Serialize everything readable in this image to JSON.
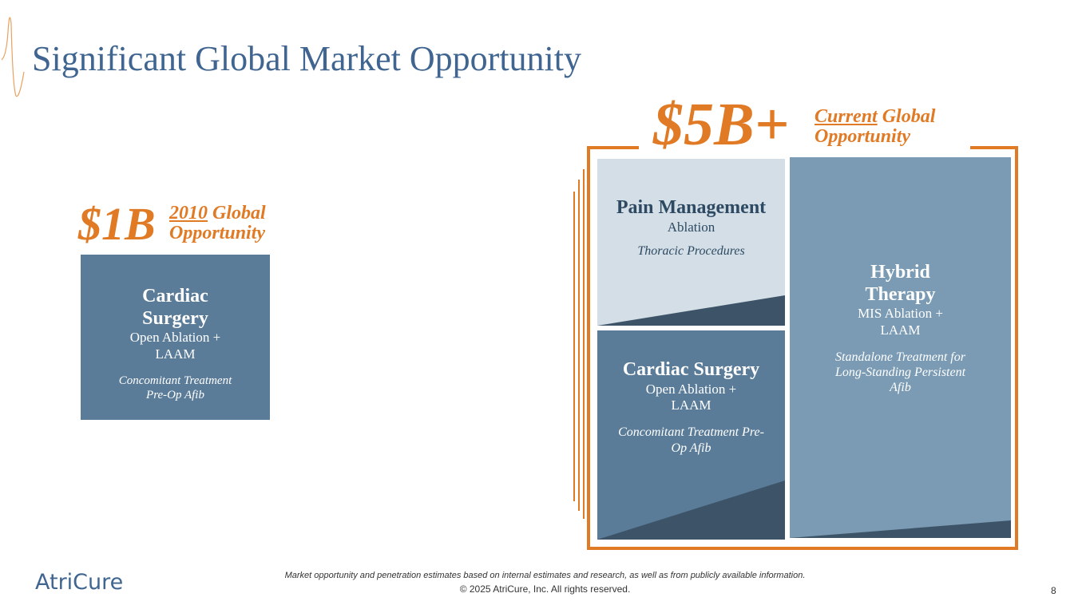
{
  "header": {
    "title": "Significant Global Market Opportunity"
  },
  "left": {
    "amount": "$1B",
    "label_underlined": "2010",
    "label_rest": "Global",
    "label_line2": "Opportunity",
    "box": {
      "title": "Cardiac Surgery",
      "subtitle": "Open Ablation + LAAM",
      "note": "Concomitant Treatment Pre-Op Afib"
    }
  },
  "right": {
    "amount": "$5B+",
    "label_underlined": "Current",
    "label_rest": "Global",
    "label_line2": "Opportunity",
    "boxes": [
      {
        "title": "Pain Management",
        "subtitle": "Ablation",
        "note": "Thoracic Procedures"
      },
      {
        "title": "Cardiac Surgery",
        "subtitle": "Open Ablation + LAAM",
        "note": "Concomitant Treatment Pre-Op Afib"
      },
      {
        "title": "Hybrid Therapy",
        "subtitle": "MIS Ablation + LAAM",
        "note": "Standalone Treatment for Long-Standing Persistent Afib"
      }
    ]
  },
  "footer": {
    "logo": "AtriCure",
    "disclaimer": "Market opportunity and penetration estimates based on internal estimates and research, as well as from publicly available information.",
    "copyright": "© 2025 AtriCure, Inc. All rights reserved.",
    "page": "8"
  }
}
